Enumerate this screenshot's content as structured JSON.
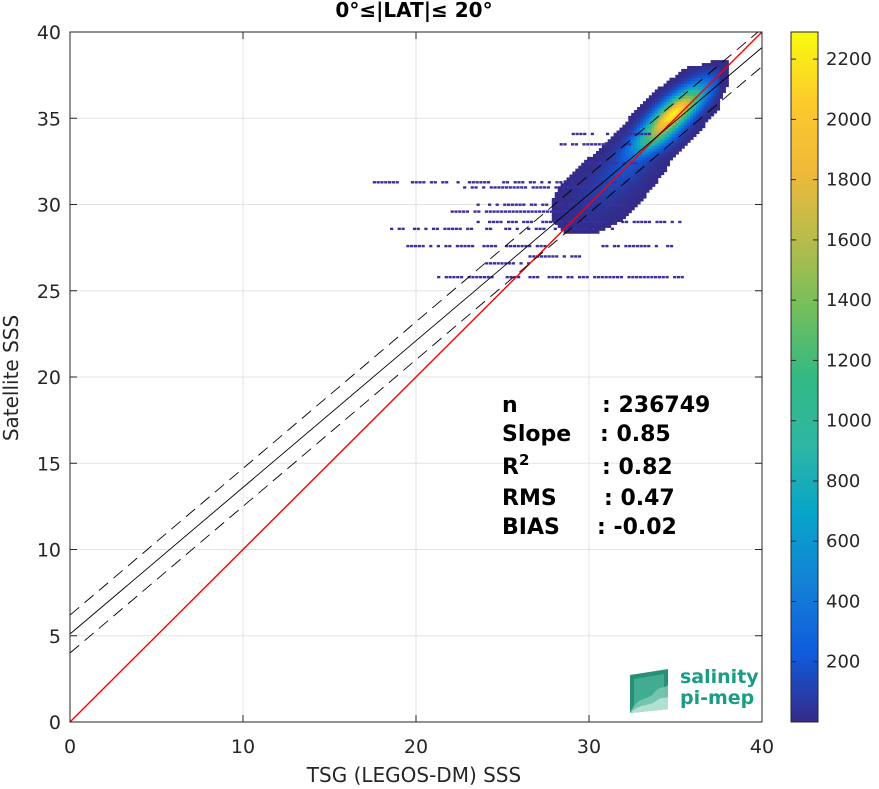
{
  "chart_data": {
    "type": "heatmap",
    "title": "0°≤|LAT|≤ 20°",
    "xlabel": "TSG (LEGOS-DM) SSS",
    "ylabel": "Satellite SSS",
    "xlim": [
      0,
      40
    ],
    "ylim": [
      0,
      40
    ],
    "x_ticks": [
      "0",
      "10",
      "20",
      "30",
      "40"
    ],
    "y_ticks": [
      "0",
      "5",
      "10",
      "15",
      "20",
      "25",
      "30",
      "35",
      "40"
    ],
    "grid": true,
    "reference_lines": [
      {
        "kind": "identity",
        "color": "#ff0000",
        "x": [
          0,
          40
        ],
        "y": [
          0,
          40
        ]
      },
      {
        "kind": "regression",
        "color": "#000000",
        "x": [
          0,
          40
        ],
        "y": [
          5.1,
          39.1
        ]
      },
      {
        "kind": "regression-plus-spread",
        "color": "#000000",
        "dash": true,
        "x": [
          0,
          40
        ],
        "y": [
          6.2,
          40.2
        ]
      },
      {
        "kind": "regression-minus-spread",
        "color": "#000000",
        "dash": true,
        "x": [
          0,
          40
        ],
        "y": [
          4.0,
          38.0
        ]
      }
    ],
    "density_clusters": [
      {
        "x": 34.8,
        "y": 35.2,
        "sx": 1.1,
        "sy": 1.0,
        "corr": 0.8,
        "peak": 2250
      },
      {
        "x": 33.5,
        "y": 33.6,
        "sx": 0.9,
        "sy": 0.6,
        "corr": 0.6,
        "peak": 500
      },
      {
        "x": 32.0,
        "y": 32.0,
        "sx": 1.0,
        "sy": 0.8,
        "corr": 0.5,
        "peak": 150
      },
      {
        "x": 30.5,
        "y": 30.5,
        "sx": 1.2,
        "sy": 1.0,
        "corr": 0.4,
        "peak": 60
      }
    ],
    "scatter_streaks": [
      {
        "y": 34.1,
        "x0": 29.0,
        "x1": 33.5
      },
      {
        "y": 33.5,
        "x0": 28.3,
        "x1": 32.5
      },
      {
        "y": 32.4,
        "x0": 29.5,
        "x1": 33.0
      },
      {
        "y": 31.3,
        "x0": 17.5,
        "x1": 32.5
      },
      {
        "y": 31.0,
        "x0": 22.5,
        "x1": 30.5
      },
      {
        "y": 30.0,
        "x0": 23.5,
        "x1": 32.0
      },
      {
        "y": 29.6,
        "x0": 22.0,
        "x1": 29.0
      },
      {
        "y": 29.0,
        "x0": 23.5,
        "x1": 35.5
      },
      {
        "y": 28.6,
        "x0": 18.5,
        "x1": 32.0
      },
      {
        "y": 27.6,
        "x0": 19.0,
        "x1": 27.5
      },
      {
        "y": 27.6,
        "x0": 30.5,
        "x1": 35.0
      },
      {
        "y": 27.0,
        "x0": 26.5,
        "x1": 30.0
      },
      {
        "y": 26.6,
        "x0": 24.0,
        "x1": 26.5
      },
      {
        "y": 25.8,
        "x0": 21.0,
        "x1": 35.5
      }
    ],
    "stats": [
      {
        "label": "n",
        "value": ": 236749"
      },
      {
        "label": "Slope",
        "value": ": 0.85"
      },
      {
        "label": "R",
        "sup": "2",
        "value": ": 0.82"
      },
      {
        "label": "RMS",
        "value": ": 0.47"
      },
      {
        "label": "BIAS",
        "value": ": -0.02"
      }
    ],
    "colorbar": {
      "min": 0,
      "max": 2290,
      "ticks": [
        "200",
        "400",
        "600",
        "800",
        "1000",
        "1200",
        "1400",
        "1600",
        "1800",
        "2000",
        "2200"
      ],
      "tick_values": [
        200,
        400,
        600,
        800,
        1000,
        1200,
        1400,
        1600,
        1800,
        2000,
        2200
      ],
      "colormap": "parula"
    }
  },
  "logo": {
    "line1": "salinity",
    "line2": "pi-mep"
  }
}
